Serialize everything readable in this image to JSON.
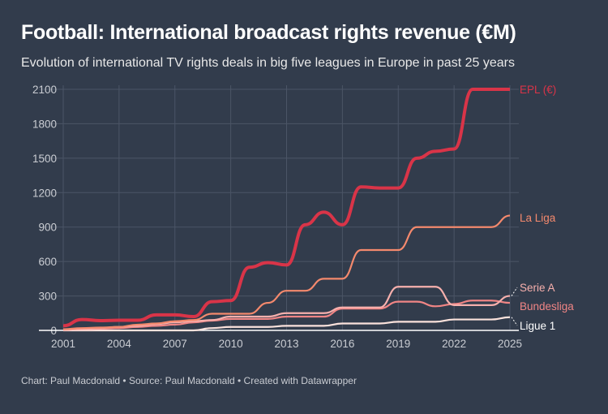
{
  "title": "Football: International broadcast rights revenue (€M)",
  "subtitle": "Evolution of international TV rights deals in big five leagues in Europe in past 25 years",
  "footer": "Chart: Paul Macdonald • Source: Paul Macdonald • Created with Datawrapper",
  "chart_data": {
    "type": "line",
    "x": [
      2001,
      2002,
      2003,
      2004,
      2005,
      2006,
      2007,
      2008,
      2009,
      2010,
      2011,
      2012,
      2013,
      2014,
      2015,
      2016,
      2017,
      2018,
      2019,
      2020,
      2021,
      2022,
      2023,
      2024,
      2025
    ],
    "xticks": [
      2001,
      2004,
      2007,
      2010,
      2013,
      2016,
      2019,
      2022,
      2025
    ],
    "yticks": [
      0,
      300,
      600,
      900,
      1200,
      1500,
      1800,
      2100
    ],
    "ylim": [
      0,
      2100
    ],
    "xlim": [
      2001,
      2025
    ],
    "grid": true,
    "legend": "direct labels at line ends",
    "series": [
      {
        "name": "EPL (€)",
        "color": "#d93448",
        "values": [
          40,
          95,
          85,
          88,
          88,
          135,
          135,
          120,
          250,
          260,
          550,
          590,
          570,
          920,
          1030,
          920,
          1250,
          1240,
          1240,
          1500,
          1560,
          1580,
          2100,
          2100,
          2100
        ]
      },
      {
        "name": "La Liga",
        "color": "#f4896d",
        "values": [
          10,
          20,
          25,
          30,
          50,
          60,
          80,
          90,
          145,
          145,
          145,
          240,
          345,
          345,
          450,
          450,
          700,
          700,
          700,
          900,
          900,
          900,
          900,
          900,
          1000
        ]
      },
      {
        "name": "Serie A",
        "color": "#f7b0ad",
        "values": [
          5,
          10,
          20,
          30,
          40,
          55,
          70,
          80,
          90,
          120,
          120,
          120,
          150,
          150,
          150,
          200,
          200,
          200,
          380,
          380,
          380,
          220,
          220,
          220,
          300
        ]
      },
      {
        "name": "Bundesliga",
        "color": "#f08585",
        "values": [
          5,
          10,
          15,
          20,
          30,
          40,
          50,
          70,
          85,
          100,
          100,
          100,
          120,
          120,
          120,
          190,
          190,
          190,
          250,
          250,
          210,
          230,
          260,
          260,
          240
        ]
      },
      {
        "name": "Ligue 1",
        "color": "#fbe2dc",
        "values": [
          0,
          0,
          0,
          0,
          0,
          0,
          0,
          0,
          20,
          30,
          30,
          30,
          40,
          40,
          40,
          60,
          60,
          60,
          75,
          75,
          75,
          95,
          95,
          95,
          115
        ]
      }
    ]
  }
}
